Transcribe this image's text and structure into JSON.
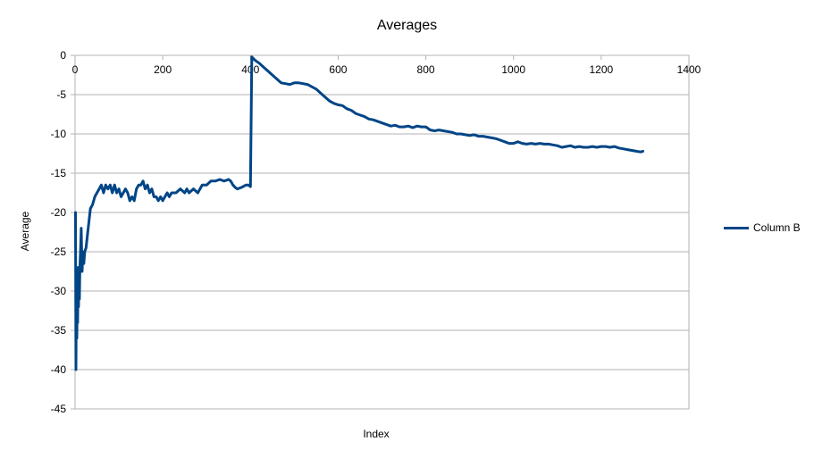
{
  "chart_data": {
    "type": "line",
    "title": "Averages",
    "xlabel": "Index",
    "ylabel": "Average",
    "xlim": [
      0,
      1400
    ],
    "ylim": [
      -45,
      0
    ],
    "xticks": [
      0,
      200,
      400,
      600,
      800,
      1000,
      1200,
      1400
    ],
    "yticks": [
      0,
      -5,
      -10,
      -15,
      -20,
      -25,
      -30,
      -35,
      -40,
      -45
    ],
    "grid": true,
    "legend_position": "right",
    "series": [
      {
        "name": "Column B",
        "color": "#004586",
        "points": [
          [
            1,
            -20
          ],
          [
            2,
            -40
          ],
          [
            3,
            -27
          ],
          [
            4,
            -36
          ],
          [
            5,
            -29
          ],
          [
            6,
            -34
          ],
          [
            7,
            -27
          ],
          [
            8,
            -32
          ],
          [
            9,
            -28
          ],
          [
            10,
            -31
          ],
          [
            11,
            -27
          ],
          [
            12,
            -25.5
          ],
          [
            13,
            -24
          ],
          [
            14,
            -22
          ],
          [
            15,
            -25
          ],
          [
            16,
            -27.5
          ],
          [
            18,
            -25
          ],
          [
            20,
            -26.5
          ],
          [
            22,
            -25
          ],
          [
            25,
            -24.5
          ],
          [
            30,
            -22
          ],
          [
            35,
            -19.5
          ],
          [
            40,
            -19
          ],
          [
            45,
            -18
          ],
          [
            50,
            -17.5
          ],
          [
            55,
            -17
          ],
          [
            60,
            -16.5
          ],
          [
            65,
            -17.5
          ],
          [
            70,
            -16.5
          ],
          [
            75,
            -17
          ],
          [
            80,
            -16.5
          ],
          [
            85,
            -17.5
          ],
          [
            90,
            -16.5
          ],
          [
            95,
            -17.5
          ],
          [
            100,
            -17
          ],
          [
            105,
            -18
          ],
          [
            110,
            -17.5
          ],
          [
            115,
            -17
          ],
          [
            120,
            -17.5
          ],
          [
            125,
            -18.5
          ],
          [
            130,
            -18
          ],
          [
            135,
            -18.5
          ],
          [
            140,
            -17
          ],
          [
            145,
            -16.5
          ],
          [
            150,
            -16.5
          ],
          [
            155,
            -16
          ],
          [
            160,
            -17
          ],
          [
            165,
            -16.5
          ],
          [
            170,
            -17.5
          ],
          [
            175,
            -17
          ],
          [
            180,
            -18
          ],
          [
            185,
            -18
          ],
          [
            190,
            -18.5
          ],
          [
            195,
            -18
          ],
          [
            200,
            -18.5
          ],
          [
            205,
            -18
          ],
          [
            210,
            -17.5
          ],
          [
            215,
            -18
          ],
          [
            220,
            -17.5
          ],
          [
            230,
            -17.5
          ],
          [
            240,
            -17
          ],
          [
            250,
            -17.5
          ],
          [
            255,
            -17
          ],
          [
            260,
            -17.5
          ],
          [
            270,
            -17
          ],
          [
            280,
            -17.5
          ],
          [
            290,
            -16.5
          ],
          [
            300,
            -16.5
          ],
          [
            310,
            -16
          ],
          [
            320,
            -16
          ],
          [
            330,
            -15.8
          ],
          [
            340,
            -16
          ],
          [
            350,
            -15.8
          ],
          [
            355,
            -16
          ],
          [
            360,
            -16.5
          ],
          [
            365,
            -16.8
          ],
          [
            370,
            -17
          ],
          [
            380,
            -16.8
          ],
          [
            390,
            -16.5
          ],
          [
            395,
            -16.5
          ],
          [
            400,
            -16.7
          ],
          [
            403,
            -0.2
          ],
          [
            410,
            -0.6
          ],
          [
            420,
            -1
          ],
          [
            430,
            -1.5
          ],
          [
            440,
            -2
          ],
          [
            450,
            -2.5
          ],
          [
            460,
            -3
          ],
          [
            470,
            -3.5
          ],
          [
            480,
            -3.6
          ],
          [
            490,
            -3.7
          ],
          [
            500,
            -3.5
          ],
          [
            510,
            -3.5
          ],
          [
            520,
            -3.6
          ],
          [
            530,
            -3.7
          ],
          [
            540,
            -4
          ],
          [
            550,
            -4.3
          ],
          [
            560,
            -4.8
          ],
          [
            570,
            -5.3
          ],
          [
            580,
            -5.8
          ],
          [
            590,
            -6.1
          ],
          [
            600,
            -6.3
          ],
          [
            610,
            -6.4
          ],
          [
            620,
            -6.8
          ],
          [
            630,
            -7
          ],
          [
            640,
            -7.4
          ],
          [
            650,
            -7.6
          ],
          [
            660,
            -7.8
          ],
          [
            670,
            -8.1
          ],
          [
            680,
            -8.2
          ],
          [
            690,
            -8.4
          ],
          [
            700,
            -8.6
          ],
          [
            710,
            -8.8
          ],
          [
            720,
            -9
          ],
          [
            730,
            -8.9
          ],
          [
            740,
            -9.1
          ],
          [
            750,
            -9.1
          ],
          [
            760,
            -9
          ],
          [
            770,
            -9.2
          ],
          [
            780,
            -9
          ],
          [
            790,
            -9.1
          ],
          [
            800,
            -9.1
          ],
          [
            810,
            -9.5
          ],
          [
            820,
            -9.6
          ],
          [
            830,
            -9.5
          ],
          [
            840,
            -9.6
          ],
          [
            850,
            -9.7
          ],
          [
            860,
            -9.8
          ],
          [
            870,
            -10
          ],
          [
            880,
            -10
          ],
          [
            890,
            -10.1
          ],
          [
            900,
            -10.2
          ],
          [
            910,
            -10.1
          ],
          [
            920,
            -10.3
          ],
          [
            930,
            -10.3
          ],
          [
            940,
            -10.4
          ],
          [
            950,
            -10.5
          ],
          [
            960,
            -10.6
          ],
          [
            970,
            -10.8
          ],
          [
            980,
            -11
          ],
          [
            990,
            -11.2
          ],
          [
            1000,
            -11.2
          ],
          [
            1010,
            -11
          ],
          [
            1020,
            -11.2
          ],
          [
            1030,
            -11.3
          ],
          [
            1040,
            -11.2
          ],
          [
            1050,
            -11.3
          ],
          [
            1060,
            -11.2
          ],
          [
            1070,
            -11.3
          ],
          [
            1080,
            -11.3
          ],
          [
            1090,
            -11.4
          ],
          [
            1100,
            -11.5
          ],
          [
            1110,
            -11.7
          ],
          [
            1120,
            -11.6
          ],
          [
            1130,
            -11.5
          ],
          [
            1140,
            -11.7
          ],
          [
            1150,
            -11.6
          ],
          [
            1160,
            -11.7
          ],
          [
            1170,
            -11.7
          ],
          [
            1180,
            -11.6
          ],
          [
            1190,
            -11.7
          ],
          [
            1200,
            -11.6
          ],
          [
            1210,
            -11.6
          ],
          [
            1220,
            -11.7
          ],
          [
            1230,
            -11.6
          ],
          [
            1240,
            -11.8
          ],
          [
            1250,
            -11.9
          ],
          [
            1260,
            -12
          ],
          [
            1270,
            -12.1
          ],
          [
            1280,
            -12.2
          ],
          [
            1290,
            -12.3
          ],
          [
            1295,
            -12.2
          ]
        ]
      }
    ]
  }
}
